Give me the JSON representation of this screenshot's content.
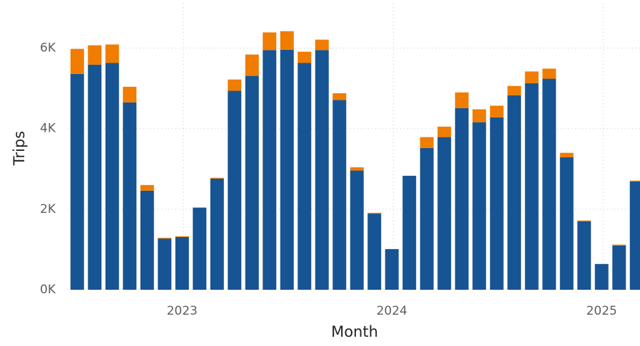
{
  "chart_data": {
    "type": "stacked_bar",
    "x_label": "Month",
    "y_label": "Trips",
    "categories": [
      null,
      null,
      null,
      null,
      null,
      null,
      "2023",
      null,
      null,
      null,
      null,
      null,
      null,
      null,
      null,
      null,
      null,
      null,
      "2024",
      null,
      null,
      null,
      null,
      null,
      null,
      null,
      null,
      null,
      null,
      null,
      "2025",
      null,
      null
    ],
    "series": [
      {
        "color": "#175493",
        "values": [
          5360,
          5590,
          5630,
          4650,
          2460,
          1270,
          1310,
          2040,
          2760,
          4940,
          5310,
          5950,
          5960,
          5630,
          5950,
          4710,
          2960,
          1890,
          1010,
          2830,
          3520,
          3790,
          4510,
          4160,
          4280,
          4830,
          5130,
          5240,
          3290,
          1700,
          640,
          1100,
          2690
        ]
      },
      {
        "color": "#f07c00",
        "values": [
          620,
          480,
          460,
          390,
          140,
          20,
          20,
          0,
          20,
          280,
          530,
          440,
          460,
          280,
          260,
          170,
          80,
          20,
          0,
          0,
          270,
          260,
          390,
          320,
          290,
          230,
          290,
          250,
          110,
          20,
          0,
          20,
          20
        ]
      }
    ],
    "ylim": [
      0,
      7000
    ],
    "yticks": [
      {
        "value": 0,
        "label": "0K"
      },
      {
        "value": 2000,
        "label": "2K"
      },
      {
        "value": 4000,
        "label": "4K"
      },
      {
        "value": 6000,
        "label": "6K"
      }
    ],
    "grid": true
  }
}
